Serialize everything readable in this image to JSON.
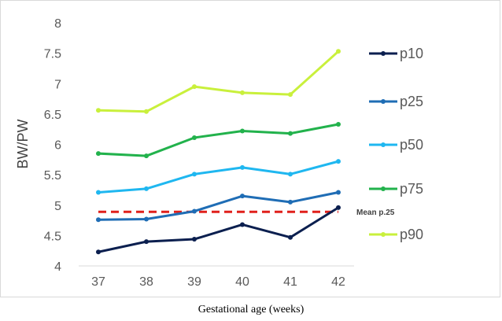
{
  "chart_data": {
    "type": "line",
    "categories": [
      "37",
      "38",
      "39",
      "40",
      "41",
      "42"
    ],
    "ylabel": "BW/PW",
    "xlabel": "Gestational age (weeks)",
    "ylim": [
      4,
      8
    ],
    "yticks": [
      "4",
      "4.5",
      "5",
      "5.5",
      "6",
      "6.5",
      "7",
      "7.5",
      "8"
    ],
    "grid": false,
    "legend_position": "right",
    "series": [
      {
        "name": "p10",
        "color": "#0b1f4f",
        "values": [
          4.23,
          4.4,
          4.44,
          4.68,
          4.47,
          4.96
        ]
      },
      {
        "name": "p25",
        "color": "#1f6db5",
        "values": [
          4.76,
          4.77,
          4.9,
          5.15,
          5.05,
          5.21
        ]
      },
      {
        "name": "p50",
        "color": "#1fb7f0",
        "values": [
          5.21,
          5.27,
          5.51,
          5.62,
          5.51,
          5.72
        ]
      },
      {
        "name": "p75",
        "color": "#22b24c",
        "values": [
          5.85,
          5.81,
          6.11,
          6.22,
          6.18,
          6.33
        ]
      },
      {
        "name": "p90",
        "color": "#c9f03c",
        "values": [
          6.56,
          6.54,
          6.95,
          6.85,
          6.82,
          7.53
        ]
      }
    ],
    "reference_line": {
      "label": "Mean p.25",
      "value": 4.89,
      "color": "#e0201b"
    }
  }
}
